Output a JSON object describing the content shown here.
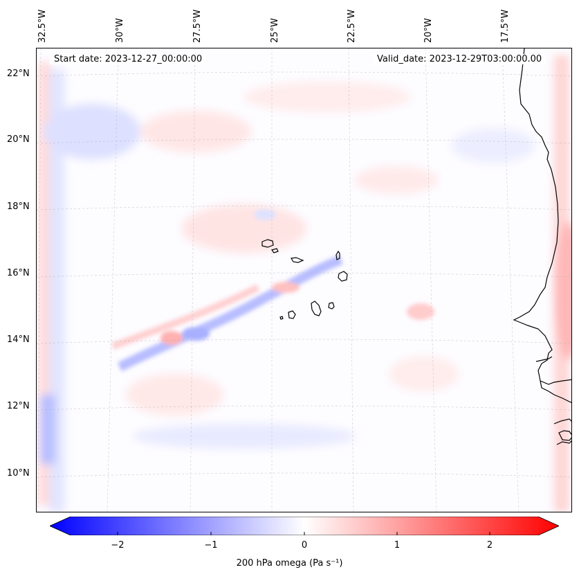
{
  "map": {
    "start_date_label": "Start date: 2023-12-27_00:00:00",
    "valid_date_label": "Valid_date: 2023-12-29T03:00:00.00",
    "longitude_labels": [
      "32.5°W",
      "30°W",
      "27.5°W",
      "25°W",
      "22.5°W",
      "20°W",
      "17.5°W"
    ],
    "latitude_labels": [
      "22°N",
      "20°N",
      "18°N",
      "16°N",
      "14°N",
      "12°N",
      "10°N"
    ],
    "land_color": "#000000"
  },
  "colorbar": {
    "title": "200 hPa omega (Pa s⁻¹)",
    "ticks": [
      "−2",
      "−1",
      "0",
      "1",
      "2"
    ],
    "min_color": "#0000ff",
    "mid_color": "#ffffff",
    "max_color": "#ff0000",
    "range": [
      -2.6,
      2.6
    ]
  }
}
